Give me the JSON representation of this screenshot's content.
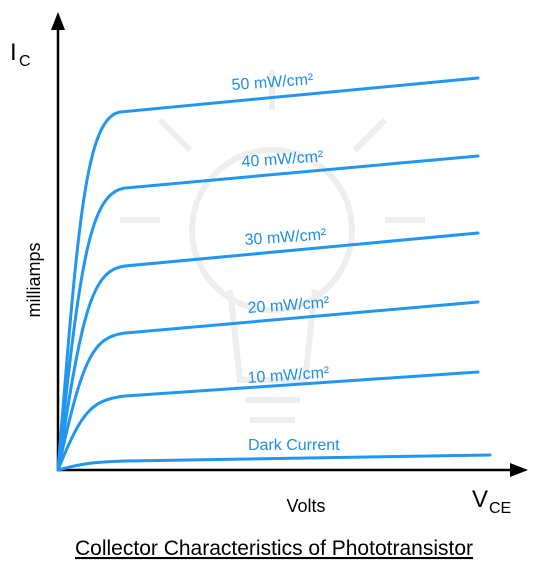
{
  "y_axis": {
    "symbol": "I",
    "subscript": "C",
    "label": "milliamps"
  },
  "x_axis": {
    "symbol": "V",
    "subscript": "CE",
    "label": "Volts"
  },
  "curves": [
    {
      "label": "50 mW/cm²"
    },
    {
      "label": "40 mW/cm²"
    },
    {
      "label": "30 mW/cm²"
    },
    {
      "label": "20 mW/cm²"
    },
    {
      "label": "10 mW/cm²"
    },
    {
      "label": "Dark Current"
    }
  ],
  "title": "Collector Characteristics of Phototransistor"
}
